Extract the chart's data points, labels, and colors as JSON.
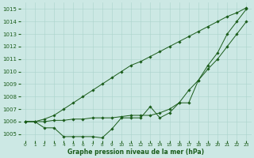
{
  "hours": [
    0,
    1,
    2,
    3,
    4,
    5,
    6,
    7,
    8,
    9,
    10,
    11,
    12,
    13,
    14,
    15,
    16,
    17,
    18,
    19,
    20,
    21,
    22,
    23
  ],
  "series1": [
    1006.0,
    1006.0,
    1005.5,
    1005.5,
    1004.8,
    1004.8,
    1004.8,
    1004.8,
    1004.7,
    1005.4,
    1006.3,
    1006.3,
    1006.3,
    1007.2,
    1006.3,
    1006.7,
    1007.5,
    1007.5,
    1009.3,
    1010.5,
    1011.5,
    1013.0,
    1014.0,
    1015.0
  ],
  "series2": [
    1006.0,
    1006.0,
    1006.0,
    1006.1,
    1006.1,
    1006.2,
    1006.2,
    1006.3,
    1006.3,
    1006.3,
    1006.4,
    1006.5,
    1006.5,
    1006.5,
    1006.7,
    1007.0,
    1007.5,
    1008.5,
    1009.3,
    1010.2,
    1011.0,
    1012.0,
    1013.0,
    1014.0
  ],
  "series3": [
    1006.0,
    1006.0,
    1006.2,
    1006.5,
    1007.0,
    1007.5,
    1008.0,
    1008.5,
    1009.0,
    1009.5,
    1010.0,
    1010.5,
    1010.8,
    1011.2,
    1011.6,
    1012.0,
    1012.4,
    1012.8,
    1013.2,
    1013.6,
    1014.0,
    1014.4,
    1014.7,
    1015.1
  ],
  "ylim": [
    1004.5,
    1015.5
  ],
  "xlim": [
    -0.5,
    23.5
  ],
  "yticks": [
    1005,
    1006,
    1007,
    1008,
    1009,
    1010,
    1011,
    1012,
    1013,
    1014,
    1015
  ],
  "bg_color": "#cce8e4",
  "line_color": "#1a5c1a",
  "grid_color": "#aad4cc",
  "xlabel": "Graphe pression niveau de la mer (hPa)",
  "xlabel_color": "#1a5c1a",
  "marker": "D",
  "marker_size": 1.8,
  "linewidth": 0.7,
  "ytick_fontsize": 5.0,
  "xtick_fontsize": 4.2,
  "xlabel_fontsize": 5.5
}
